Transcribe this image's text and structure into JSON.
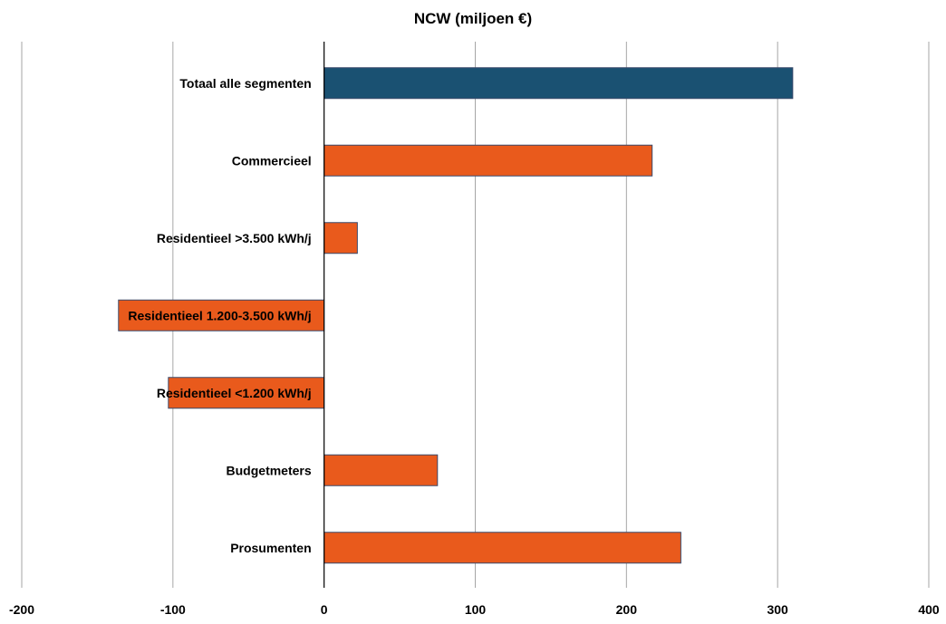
{
  "chart_data": {
    "type": "bar",
    "orientation": "horizontal",
    "title": "NCW (miljoen €)",
    "xlabel": "",
    "ylabel": "",
    "xlim": [
      -200,
      400
    ],
    "x_ticks": [
      -200,
      -100,
      0,
      100,
      200,
      300,
      400
    ],
    "x_tick_labels": [
      "-200",
      "-100",
      "0",
      "100",
      "200",
      "300",
      "400"
    ],
    "grid": "vertical",
    "legend": "none",
    "categories": [
      "Totaal alle segmenten",
      "Commercieel",
      "Residentieel >3.500 kWh/j",
      "Residentieel 1.200-3.500 kWh/j",
      "Residentieel <1.200 kWh/j",
      "Budgetmeters",
      "Prosumenten"
    ],
    "values": [
      310,
      217,
      22,
      -136,
      -103,
      75,
      236
    ],
    "bar_colors": [
      "#1a5172",
      "#e95a1c",
      "#e95a1c",
      "#e95a1c",
      "#e95a1c",
      "#e95a1c",
      "#e95a1c"
    ]
  }
}
